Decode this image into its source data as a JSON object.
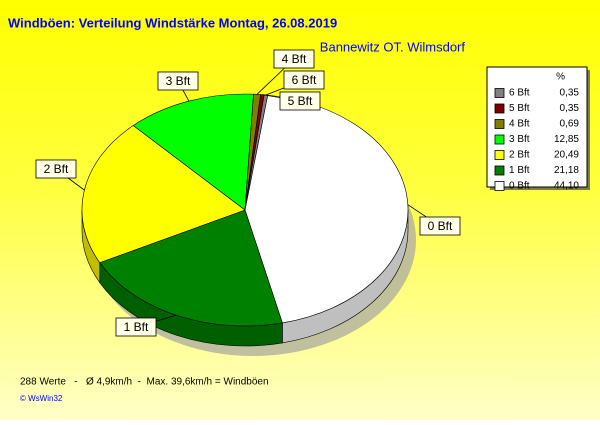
{
  "chart_data": {
    "type": "pie",
    "title": "Windböen: Verteilung Windstärke  Montag, 26.08.2019",
    "subtitle": "Bannewitz OT. Wilmsdorf",
    "legend_title": "%",
    "categories": [
      "0 Bft",
      "1 Bft",
      "2 Bft",
      "3 Bft",
      "4 Bft",
      "5 Bft",
      "6 Bft"
    ],
    "values": [
      44.1,
      21.18,
      20.49,
      12.85,
      0.69,
      0.35,
      0.35
    ],
    "value_labels": [
      "44,10",
      "21,18",
      "20,49",
      "12,85",
      "0,69",
      "0,35",
      "0,35"
    ],
    "colors": [
      "#ffffff",
      "#008000",
      "#ffff00",
      "#00ff00",
      "#808000",
      "#800000",
      "#808080"
    ],
    "footer": "288 Werte   -   Ø 4,9km/h  -  Max. 39,6km/h = Windböen",
    "credit": "© WsWin32"
  }
}
